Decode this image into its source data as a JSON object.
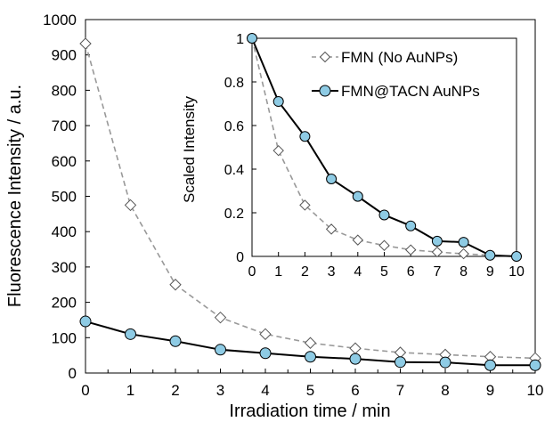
{
  "chart_data": [
    {
      "type": "line",
      "xlabel": "Irradiation time / min",
      "ylabel": "Fluorescence Intensity / a.u.",
      "xlim": [
        0,
        10
      ],
      "ylim": [
        0,
        1000
      ],
      "x_ticks": [
        0,
        1,
        2,
        3,
        4,
        5,
        6,
        7,
        8,
        9,
        10
      ],
      "y_ticks": [
        0,
        100,
        200,
        300,
        400,
        500,
        600,
        700,
        800,
        900,
        1000
      ],
      "grid": false,
      "x": [
        0,
        1,
        2,
        3,
        4,
        5,
        6,
        7,
        8,
        9,
        10
      ],
      "series": [
        {
          "name": "FMN (No AuNPs)",
          "values": [
            932,
            475,
            250,
            157,
            110,
            85,
            70,
            58,
            52,
            46,
            42
          ],
          "color": "#999999",
          "line_style": "dashed",
          "marker": "open-diamond"
        },
        {
          "name": "FMN@TACN AuNPs",
          "values": [
            146,
            110,
            90,
            66,
            56,
            46,
            40,
            31,
            30,
            22,
            22
          ],
          "color": "#000000",
          "line_style": "solid",
          "marker": "filled-circle",
          "marker_color": "#8ecbe4"
        }
      ]
    },
    {
      "type": "line",
      "role": "inset",
      "xlabel": "",
      "ylabel": "Scaled Intensity",
      "xlim": [
        0,
        10
      ],
      "ylim": [
        0,
        1
      ],
      "x_ticks": [
        0,
        1,
        2,
        3,
        4,
        5,
        6,
        7,
        8,
        9,
        10
      ],
      "y_ticks": [
        0,
        0.2,
        0.4,
        0.6,
        0.8,
        1
      ],
      "y_tick_labels": [
        "0",
        "0.2",
        "0.4",
        "0.6",
        "0.8",
        "1"
      ],
      "grid": false,
      "legend_position": "top-right",
      "x": [
        0,
        1,
        2,
        3,
        4,
        5,
        6,
        7,
        8,
        9,
        10
      ],
      "series": [
        {
          "name": "FMN (No AuNPs)",
          "values": [
            1.0,
            0.485,
            0.235,
            0.125,
            0.075,
            0.05,
            0.03,
            0.02,
            0.012,
            0.005,
            0.0
          ],
          "color": "#999999",
          "line_style": "dashed",
          "marker": "open-diamond"
        },
        {
          "name": "FMN@TACN AuNPs",
          "values": [
            1.0,
            0.71,
            0.55,
            0.355,
            0.275,
            0.19,
            0.14,
            0.07,
            0.065,
            0.005,
            0.0
          ],
          "color": "#000000",
          "line_style": "solid",
          "marker": "filled-circle",
          "marker_color": "#8ecbe4"
        }
      ]
    }
  ]
}
